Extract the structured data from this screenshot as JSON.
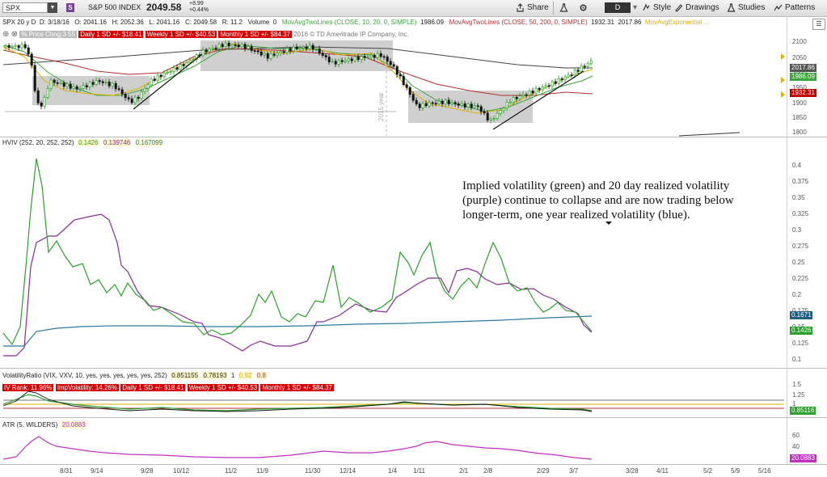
{
  "toolbar": {
    "symbol": "SPX",
    "symbol_badge": "S",
    "symbol_name": "S&P 500 INDEX",
    "price": "2049.58",
    "change": "+8.99",
    "change_pct": "+0.44%",
    "share": "Share",
    "period": "D",
    "style": "Style",
    "drawings": "Drawings",
    "studies": "Studies",
    "patterns": "Patterns"
  },
  "price_header": {
    "period": "SPX 20 y D",
    "date": "D: 3/18/16",
    "open": "O: 2041.16",
    "high": "H: 2052.36",
    "low": "L: 2041.16",
    "close": "C: 2049.58",
    "range": "R: 11.2",
    "volume": "Volume",
    "volume_val": "0",
    "ma10": "MovAvgTwoLines (CLOSE, 10, 20, 0, SIMPLE)",
    "ma10_val": "1986.09",
    "ma50": "MovAvgTwoLines (CLOSE, 50, 200, 0, SIMPLE)",
    "ma50_val": "1932.31",
    "ma50_val2": "2017.86",
    "ma_exp": "MovAvgExponential ..."
  },
  "price_row2": {
    "pchg": "% Price Chng:3.55",
    "daily": "Daily 1 SD +/- $18.41",
    "weekly": "Weekly 1 SD +/- $40.53",
    "monthly": "Monthly 1 SD +/- $84.37",
    "copyright": "2016 © TD Ameritrade IP Company, Inc."
  },
  "price_axis": [
    "2100",
    "2050",
    "2000",
    "1950",
    "1900",
    "1850",
    "1800"
  ],
  "price_flags": [
    "2017.86",
    "1986.09",
    "1932.31"
  ],
  "year_marker": "2015 year",
  "hviv_header": {
    "label": "HVIV (252, 20, 252, 252)",
    "v1": "0.1426",
    "v2": "0.139746",
    "v3": "0.167099"
  },
  "hviv_axis": [
    "0.4",
    "0.375",
    "0.35",
    "0.325",
    "0.3",
    "0.275",
    "0.25",
    "0.225",
    "0.2",
    "0.175",
    "0.15",
    "0.125",
    "0.1"
  ],
  "hviv_flags": [
    "0.1671",
    "0.1426"
  ],
  "annotation": "Implied volatility (green) and 20 day realized volatility (purple) continue to collapse and are now trading below longer-term, one year realized volatility (blue).",
  "vr_header": {
    "label": "VolatilityRatio (VIX, VXV, 10, yes, yes, yes, yes, yes, 252)",
    "v1": "0.851155",
    "v2": "0.78193",
    "v3": "1",
    "v4": "0.92",
    "v5": "0.8"
  },
  "vr_row2": {
    "ivrank": "IV Rank: 11.96%",
    "impvol": "ImpVolatility: 14.26%",
    "daily": "Daily 1 SD +/- $18.41",
    "weekly": "Weekly 1 SD +/- $40.53",
    "monthly": "Monthly 1 SD +/- $84.37"
  },
  "vr_axis": [
    "1.5",
    "1.25",
    "1"
  ],
  "vr_flag": "0.85116",
  "atr_header": {
    "label": "ATR (5, WILDERS)",
    "v1": "20.0883"
  },
  "atr_axis": [
    "60",
    "40",
    "20"
  ],
  "atr_flag": "20.0883",
  "x_axis": [
    "8/31",
    "9/14",
    "9/28",
    "10/12",
    "11/2",
    "11/9",
    "11/30",
    "12/14",
    "1/4",
    "1/11",
    "2/1",
    "2/8",
    "2/29",
    "3/7",
    "3/28",
    "4/11",
    "5/2",
    "5/9",
    "5/16"
  ],
  "colors": {
    "implied_vol": "#2ca02c",
    "realized_20d": "#8b2a9b",
    "realized_1y": "#2a7a9b",
    "ma_yellow": "#e0b000",
    "ma_green": "#3aa53a",
    "ma_red": "#b23030",
    "ma_dark": "#444444",
    "atr": "#c030c0",
    "flag_red": "#c00000"
  }
}
